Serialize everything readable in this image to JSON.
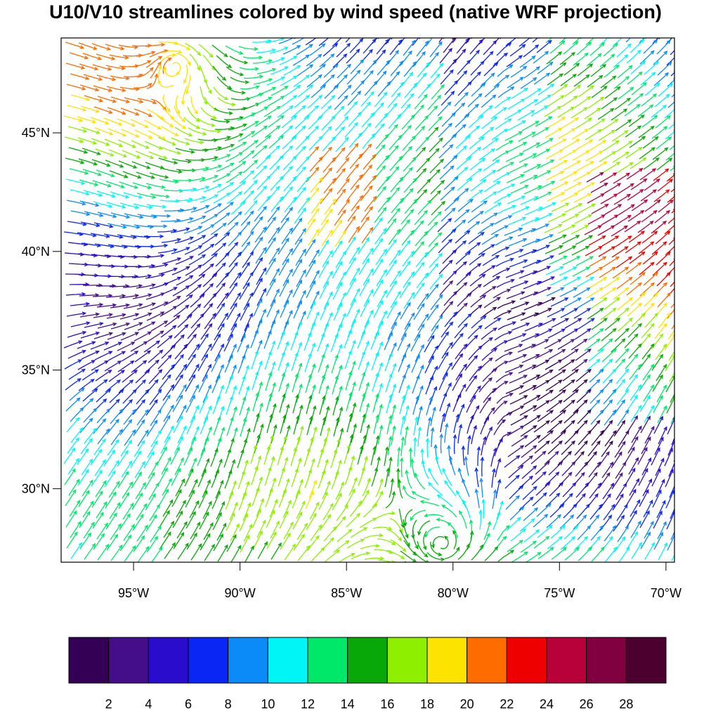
{
  "title": "U10/V10 streamlines colored by wind speed (native WRF projection)",
  "chart_data": {
    "type": "streamline",
    "title": "U10/V10 streamlines colored by wind speed (native WRF projection)",
    "xlabel": "",
    "ylabel": "",
    "x_ticks": [
      {
        "value": -95,
        "label": "95°W"
      },
      {
        "value": -90,
        "label": "90°W"
      },
      {
        "value": -85,
        "label": "85°W"
      },
      {
        "value": -80,
        "label": "80°W"
      },
      {
        "value": -75,
        "label": "75°W"
      },
      {
        "value": -70,
        "label": "70°W"
      }
    ],
    "y_ticks": [
      {
        "value": 45,
        "label": "45°N"
      },
      {
        "value": 40,
        "label": "40°N"
      },
      {
        "value": 35,
        "label": "35°N"
      },
      {
        "value": 30,
        "label": "30°N"
      }
    ],
    "xlim": [
      -98.4,
      -69.6
    ],
    "ylim": [
      26.9,
      49.0
    ],
    "colorbar": {
      "ticks": [
        2,
        4,
        6,
        8,
        10,
        12,
        14,
        16,
        18,
        20,
        22,
        24,
        26,
        28
      ],
      "colors": [
        "#330055",
        "#440e8a",
        "#2a0ccc",
        "#0a26f5",
        "#0a8bf8",
        "#00f6f6",
        "#00e86a",
        "#08a808",
        "#8ef000",
        "#fce300",
        "#fe6c00",
        "#ee0000",
        "#b8003a",
        "#800040",
        "#4c0030"
      ]
    },
    "circulation_centers": [
      {
        "lon": -93.0,
        "lat": 47.9
      },
      {
        "lon": -80.5,
        "lat": 27.6
      }
    ]
  }
}
